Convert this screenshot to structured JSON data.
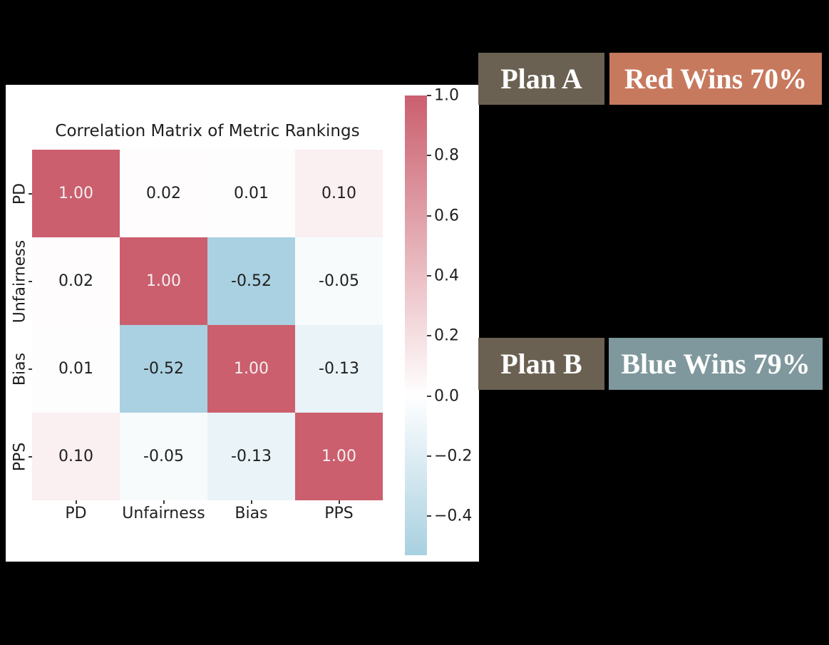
{
  "colors": {
    "background": "#000000",
    "panel": "#ffffff",
    "text": "#1f1f1f",
    "cell_text_light": "#f5eff0"
  },
  "chart_data": {
    "type": "heatmap",
    "title": "Correlation Matrix of Metric Rankings",
    "x_categories": [
      "PD",
      "Unfairness",
      "Bias",
      "PPS"
    ],
    "y_categories": [
      "PD",
      "Unfairness",
      "Bias",
      "PPS"
    ],
    "values": [
      [
        1.0,
        0.02,
        0.01,
        0.1
      ],
      [
        0.02,
        1.0,
        -0.52,
        -0.05
      ],
      [
        0.01,
        -0.52,
        1.0,
        -0.13
      ],
      [
        0.1,
        -0.05,
        -0.13,
        1.0
      ]
    ],
    "value_decimals": 2,
    "colormap": {
      "positive": "#cb5f6e",
      "midpoint": "#ffffff",
      "negative": "#a8d0e0",
      "vmax": 1.0,
      "vmin": -0.53
    },
    "colorbar_ticks": [
      {
        "label": "1.0",
        "value": 1.0
      },
      {
        "label": "0.8",
        "value": 0.8
      },
      {
        "label": "0.6",
        "value": 0.6
      },
      {
        "label": "0.4",
        "value": 0.4
      },
      {
        "label": "0.2",
        "value": 0.2
      },
      {
        "label": "0.0",
        "value": 0.0
      },
      {
        "label": "−0.2",
        "value": -0.2
      },
      {
        "label": "−0.4",
        "value": -0.4
      }
    ],
    "grid": false,
    "legend_position": "right-colorbar"
  },
  "annotations": {
    "plan_a": {
      "label": "Plan A",
      "bg": "#6b6152",
      "text_color": "#ffffff"
    },
    "red_wins": {
      "label": "Red Wins 70%",
      "bg": "#c7795e",
      "text_color": "#ffffff"
    },
    "plan_b": {
      "label": "Plan B",
      "bg": "#6b6152",
      "text_color": "#ffffff"
    },
    "blue_wins": {
      "label": "Blue Wins 79%",
      "bg": "#7f989d",
      "text_color": "#ffffff"
    }
  }
}
